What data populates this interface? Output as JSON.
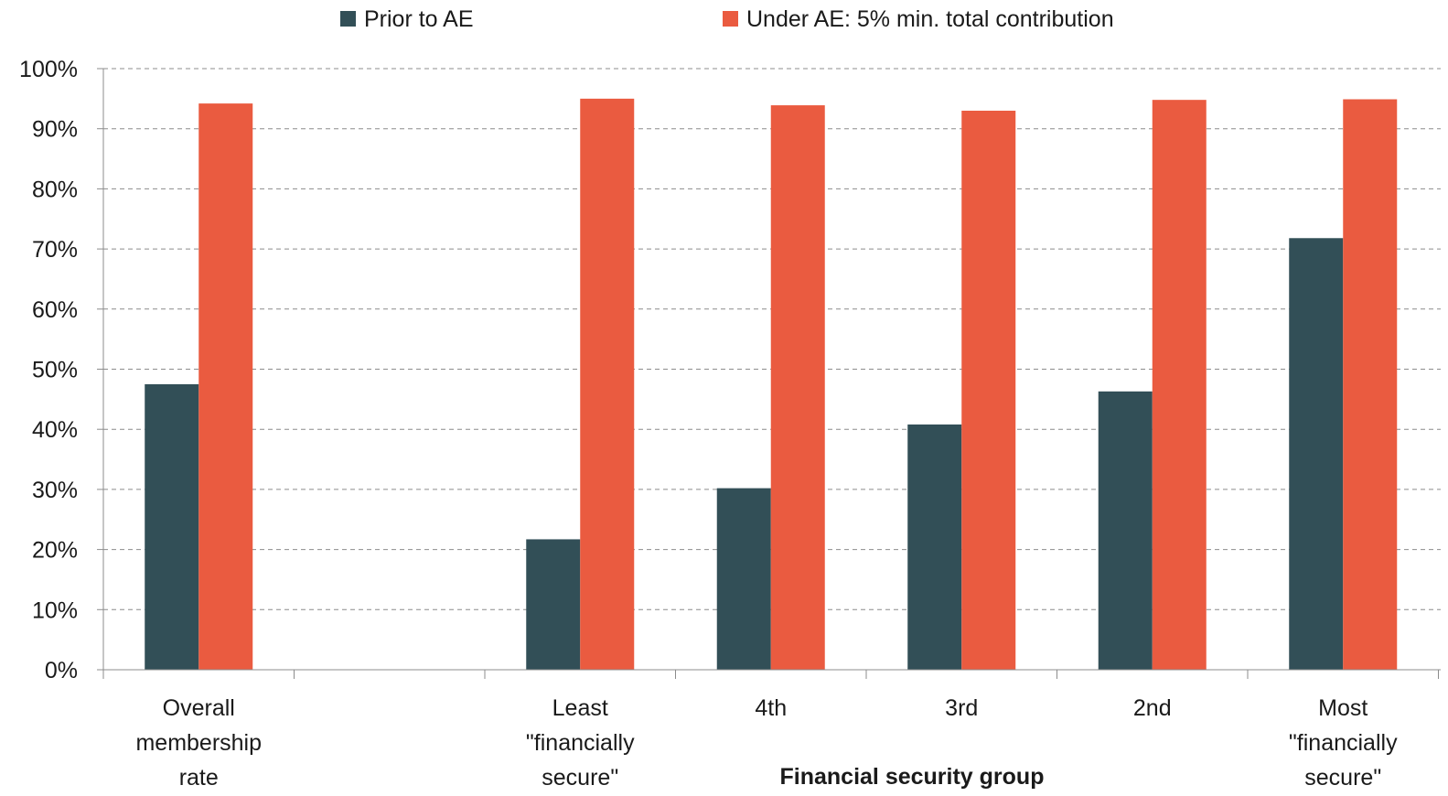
{
  "chart_data": {
    "type": "bar",
    "categories": [
      [
        "Overall",
        "membership",
        "rate"
      ],
      [],
      [
        "Least",
        "\"financially",
        "secure\""
      ],
      [
        "4th"
      ],
      [
        "3rd"
      ],
      [
        "2nd"
      ],
      [
        "Most",
        "\"financially",
        "secure\""
      ]
    ],
    "series": [
      {
        "name": "Prior to AE",
        "color": "#324f57",
        "values": [
          47.5,
          null,
          21.7,
          30.2,
          40.8,
          46.3,
          71.8
        ]
      },
      {
        "name": "Under AE: 5% min. total contribution",
        "color": "#ea5b40",
        "values": [
          94.2,
          null,
          95.0,
          93.9,
          93.0,
          94.8,
          94.9
        ]
      }
    ],
    "xlabel": "Financial security group",
    "ylabel": "",
    "ylim": [
      0,
      100
    ],
    "yticks": [
      0,
      10,
      20,
      30,
      40,
      50,
      60,
      70,
      80,
      90,
      100
    ],
    "ytick_labels": [
      "0%",
      "10%",
      "20%",
      "30%",
      "40%",
      "50%",
      "60%",
      "70%",
      "80%",
      "90%",
      "100%"
    ],
    "grid": true,
    "legend_position": "top"
  }
}
